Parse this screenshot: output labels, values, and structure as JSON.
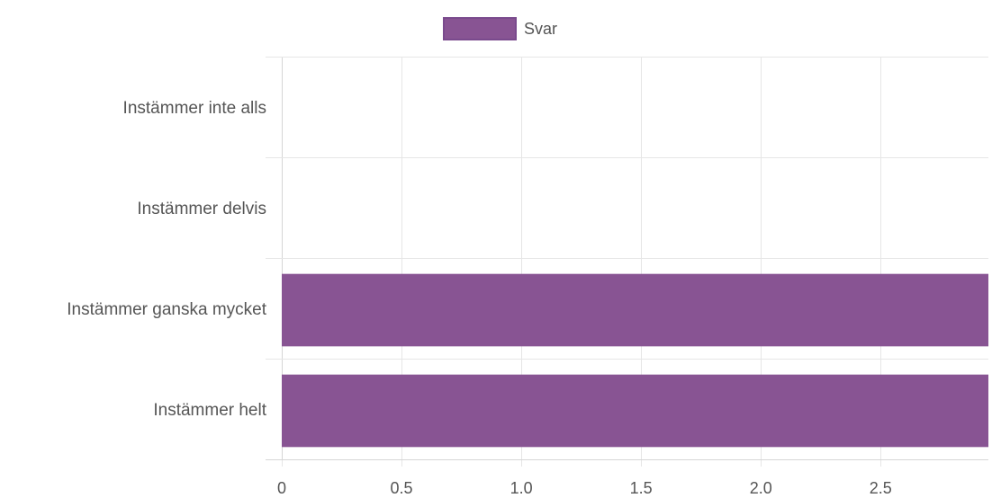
{
  "chart_data": {
    "type": "bar",
    "orientation": "horizontal",
    "categories": [
      "Instämmer inte alls",
      "Instämmer delvis",
      "Instämmer ganska mycket",
      "Instämmer helt"
    ],
    "series": [
      {
        "name": "Svar",
        "values": [
          0,
          0,
          3,
          3
        ],
        "color": "#885493"
      }
    ],
    "x_ticks": [
      "0",
      "0.5",
      "1.0",
      "1.5",
      "2.0",
      "2.5"
    ],
    "xlim": [
      0,
      2.95
    ],
    "grid": true,
    "legend_position": "top-center"
  }
}
